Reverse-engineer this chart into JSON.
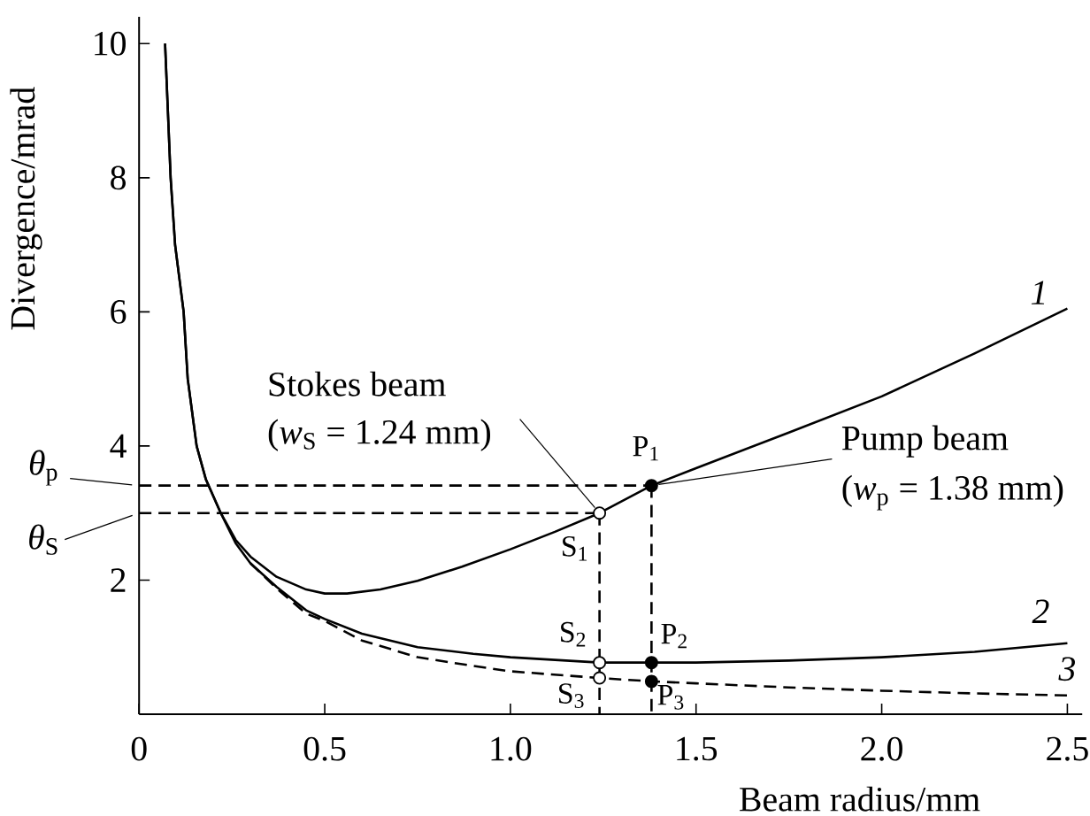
{
  "chart_data": {
    "type": "line",
    "xlabel": "Beam radius/mm",
    "ylabel": "Divergence/mrad",
    "xlim": [
      0,
      2.54
    ],
    "ylim": [
      0,
      10.4
    ],
    "xticks": [
      0,
      0.5,
      {
        "value": 1,
        "label": "1.0"
      },
      1.5,
      {
        "value": 2,
        "label": "2.0"
      },
      2.5
    ],
    "yticks": [
      2,
      4,
      6,
      8,
      10
    ],
    "series": [
      {
        "x": [
          0,
          1.38
        ],
        "values": [
          3.41,
          3.41
        ],
        "color": "#000000",
        "line_style": "dashed"
      },
      {
        "x": [
          0,
          1.24
        ],
        "values": [
          3.0,
          3.0
        ],
        "color": "#000000",
        "line_style": "dashed"
      },
      {
        "x": [
          1.24,
          1.24
        ],
        "values": [
          3.0,
          0
        ],
        "color": "#000000",
        "line_style": "dashed"
      },
      {
        "x": [
          1.38,
          1.38
        ],
        "values": [
          3.41,
          0
        ],
        "color": "#000000",
        "line_style": "dashed"
      },
      {
        "name": "1",
        "color": "#000000",
        "line_style": "solid",
        "x": [
          0.07,
          0.085,
          0.097,
          0.12,
          0.131,
          0.155,
          0.18,
          0.22,
          0.26,
          0.3,
          0.37,
          0.45,
          0.5,
          0.56,
          0.65,
          0.75,
          0.87,
          1.0,
          1.12,
          1.24,
          1.38,
          1.5,
          1.75,
          2.0,
          2.25,
          2.5
        ],
        "values": [
          10.0,
          8.0,
          7.0,
          6.0,
          5.0,
          4.0,
          3.5,
          3.0,
          2.6,
          2.35,
          2.05,
          1.86,
          1.8,
          1.8,
          1.86,
          1.99,
          2.2,
          2.46,
          2.72,
          3.0,
          3.41,
          3.67,
          4.2,
          4.74,
          5.38,
          6.05
        ]
      },
      {
        "name": "2",
        "color": "#000000",
        "line_style": "solid",
        "x": [
          0.07,
          0.085,
          0.097,
          0.12,
          0.131,
          0.155,
          0.18,
          0.22,
          0.26,
          0.3,
          0.37,
          0.45,
          0.5,
          0.6,
          0.75,
          0.9,
          1.0,
          1.24,
          1.38,
          1.5,
          1.75,
          2.0,
          2.25,
          2.5
        ],
        "values": [
          10.0,
          8.0,
          7.0,
          6.0,
          5.0,
          4.0,
          3.5,
          3.0,
          2.55,
          2.25,
          1.9,
          1.55,
          1.42,
          1.2,
          1.0,
          0.9,
          0.85,
          0.77,
          0.77,
          0.77,
          0.8,
          0.85,
          0.93,
          1.06
        ]
      },
      {
        "name": "3",
        "color": "#000000",
        "line_style": "dashed",
        "x": [
          0.3,
          0.37,
          0.45,
          0.5,
          0.6,
          0.75,
          0.9,
          1.0,
          1.24,
          1.38,
          1.5,
          1.75,
          2.0,
          2.25,
          2.5
        ],
        "values": [
          2.25,
          1.88,
          1.5,
          1.39,
          1.1,
          0.85,
          0.72,
          0.64,
          0.54,
          0.49,
          0.46,
          0.4,
          0.35,
          0.31,
          0.28
        ]
      },
      {
        "type": "scatter",
        "marker": "circle",
        "color": "#ffffff",
        "x": [
          1.24,
          1.24,
          1.24
        ],
        "values": [
          3.0,
          0.77,
          0.54
        ]
      },
      {
        "type": "scatter",
        "marker": "circle",
        "color": "#000000",
        "x": [
          1.38,
          1.38,
          1.38
        ],
        "values": [
          3.41,
          0.77,
          0.49
        ]
      }
    ],
    "annotations": [
      {
        "text": "S$_{1}$",
        "x": 1.24,
        "y": 3.0
      },
      {
        "text": "P$_{1}$",
        "x": 1.38,
        "y": 3.41
      },
      {
        "text": "S$_{2}$",
        "x": 1.24,
        "y": 0.77
      },
      {
        "text": "P$_{2}$",
        "x": 1.38,
        "y": 0.77
      },
      {
        "text": "S$_{3}$",
        "x": 1.24,
        "y": 0.54
      },
      {
        "text": "P$_{3}$",
        "x": 1.38,
        "y": 0.49
      },
      "Stokes beam",
      {
        "text": "(*w*$_{S}$ = 1.24 mm)",
        "x": 1.24,
        "y": 3.0
      },
      {
        "text": "Pump beam",
        "x": 1.38,
        "y": 3.41
      },
      "(*w*$_{p}$ = 1.38 mm)",
      {
        "text": "*θ*$_{p}$",
        "x": 0,
        "y": 3.41
      },
      {
        "text": "*θ*$_{S}$",
        "x": 0,
        "y": 3.0
      }
    ]
  }
}
